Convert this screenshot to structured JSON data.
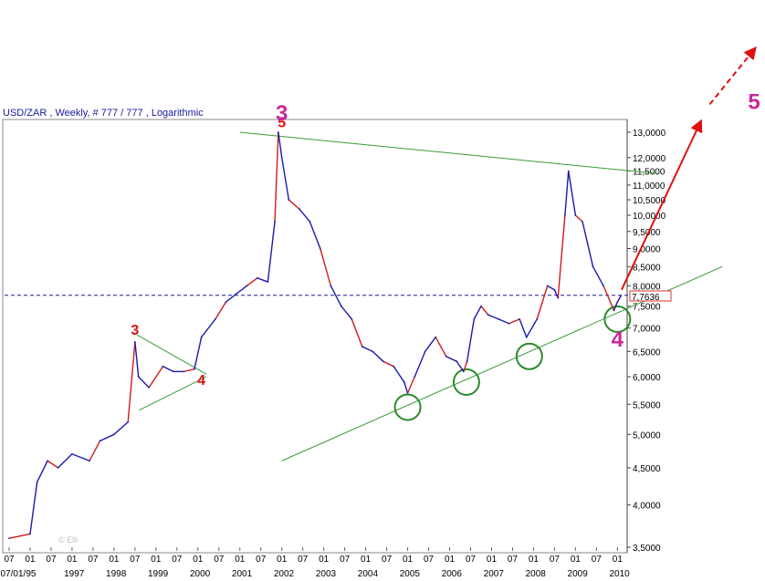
{
  "chart_data": {
    "type": "line",
    "title": "USD/ZAR , Weekly, # 777 / 777 , Logarithmic",
    "scale": "log",
    "ylim": [
      3500,
      13000
    ],
    "yticks": [
      "13,0000",
      "12,0000",
      "11,5000",
      "11,0000",
      "10,5000",
      "10,0000",
      "9,5000",
      "9,0000",
      "8,5000",
      "8,0000",
      "7,5000",
      "7,0000",
      "6,5000",
      "6,0000",
      "5,5000",
      "5,0000",
      "4,5000",
      "4,0000",
      "3,5000"
    ],
    "ytick_values": [
      13000,
      12000,
      11500,
      11000,
      10500,
      10000,
      9500,
      9000,
      8500,
      8000,
      7500,
      7000,
      6500,
      6000,
      5500,
      5000,
      4500,
      4000,
      3500
    ],
    "x_month_labels": [
      "07",
      "01",
      "07",
      "01",
      "07",
      "01",
      "07",
      "01",
      "07",
      "01",
      "07",
      "01",
      "07",
      "01",
      "07",
      "01",
      "07",
      "01",
      "07",
      "01",
      "07",
      "01",
      "07",
      "01",
      "07",
      "01",
      "07",
      "01",
      "07",
      "01",
      "07",
      "01"
    ],
    "x_year_labels": [
      "07/01/95",
      "1997",
      "1998",
      "1999",
      "2000",
      "2001",
      "2002",
      "2003",
      "2004",
      "2005",
      "2006",
      "2007",
      "2008",
      "2009",
      "2010"
    ],
    "last_value_label": "7,7636",
    "last_value": 7763.6,
    "series": [
      {
        "x": [
          "1995-07",
          "1996-01",
          "1996-03",
          "1996-06",
          "1996-09",
          "1997-01",
          "1997-06",
          "1997-09",
          "1998-01",
          "1998-05",
          "1998-07",
          "1998-08",
          "1998-11",
          "1999-03",
          "1999-06",
          "1999-09",
          "1999-12",
          "2000-02",
          "2000-06",
          "2000-09",
          "2000-12",
          "2001-03",
          "2001-06",
          "2001-09",
          "2001-11",
          "2001-12",
          "2002-01",
          "2002-03",
          "2002-06",
          "2002-09",
          "2002-12",
          "2003-03",
          "2003-06",
          "2003-09",
          "2003-12",
          "2004-03",
          "2004-06",
          "2004-09",
          "2004-12",
          "2005-01",
          "2005-03",
          "2005-06",
          "2005-09",
          "2005-12",
          "2006-03",
          "2006-05",
          "2006-06",
          "2006-08",
          "2006-10",
          "2006-12",
          "2007-03",
          "2007-06",
          "2007-09",
          "2007-11",
          "2008-02",
          "2008-05",
          "2008-07",
          "2008-08",
          "2008-10",
          "2008-11",
          "2009-01",
          "2009-03",
          "2009-06",
          "2009-09",
          "2009-12",
          "2010-01",
          "2010-02"
        ],
        "y": [
          3600,
          3650,
          4300,
          4600,
          4500,
          4700,
          4600,
          4900,
          5000,
          5200,
          6700,
          6000,
          5800,
          6200,
          6100,
          6100,
          6150,
          6800,
          7200,
          7600,
          7800,
          8000,
          8200,
          8100,
          9800,
          13000,
          12000,
          10500,
          10200,
          9800,
          9000,
          8000,
          7500,
          7200,
          6600,
          6500,
          6300,
          6200,
          5900,
          5700,
          6000,
          6500,
          6800,
          6400,
          6300,
          6100,
          6300,
          7200,
          7500,
          7300,
          7200,
          7100,
          7200,
          6800,
          7200,
          8000,
          7900,
          7700,
          10000,
          11500,
          10000,
          9800,
          8500,
          8000,
          7400,
          7600,
          7750
        ]
      }
    ],
    "annotations": {
      "wave_red": [
        {
          "label": "3",
          "x": "1998-07",
          "y": 6850
        },
        {
          "label": "4",
          "x": "2000-02",
          "y": 5850
        },
        {
          "label": "5",
          "x": "2002-01",
          "y": 13200
        }
      ],
      "wave_magenta": [
        {
          "label": "3",
          "x": "2002-01",
          "y": 13500
        },
        {
          "label": "4",
          "x": "2010-01",
          "y": 6600
        },
        {
          "label": "5",
          "x": "2013-10",
          "y": 14000
        }
      ]
    }
  }
}
